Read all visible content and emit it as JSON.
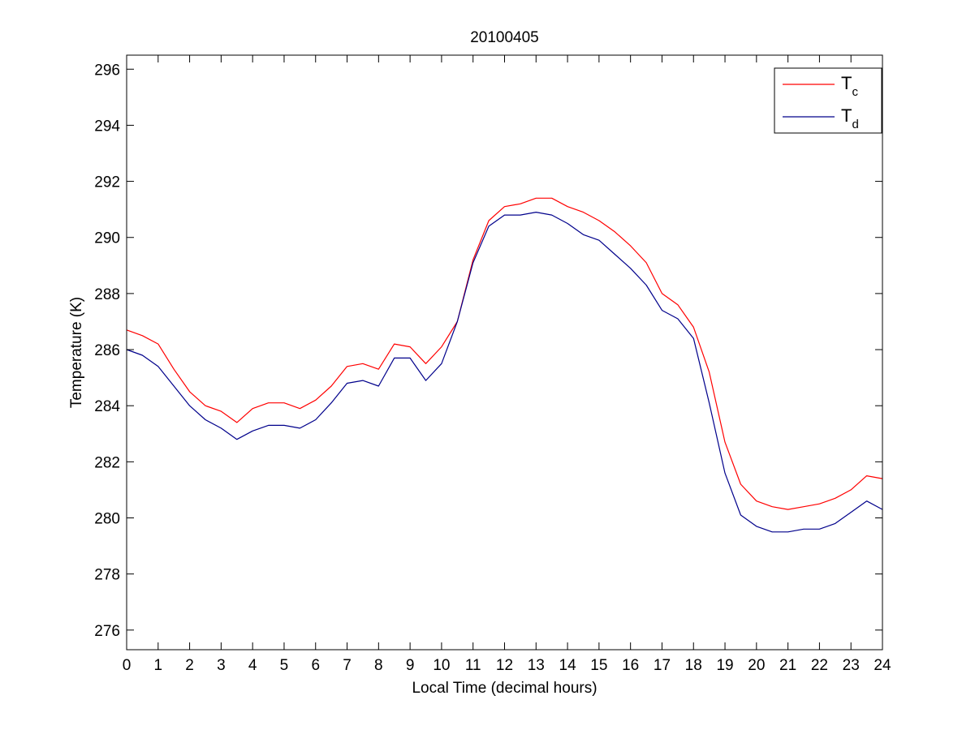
{
  "chart_data": {
    "type": "line",
    "title": "20100405",
    "xlabel": "Local Time (decimal hours)",
    "ylabel": "Temperature (K)",
    "xlim": [
      0,
      24
    ],
    "ylim": [
      275.3,
      296.5
    ],
    "xticks": [
      "0",
      "1",
      "2",
      "3",
      "4",
      "5",
      "6",
      "7",
      "8",
      "9",
      "10",
      "11",
      "12",
      "13",
      "14",
      "15",
      "16",
      "17",
      "18",
      "19",
      "20",
      "21",
      "22",
      "23",
      "24"
    ],
    "yticks": [
      "276",
      "278",
      "280",
      "282",
      "284",
      "286",
      "288",
      "290",
      "292",
      "294",
      "296"
    ],
    "grid": false,
    "legend_position": "top-right",
    "series": [
      {
        "name": "T",
        "subscript": "c",
        "color": "#ff0000",
        "x": [
          0,
          0.5,
          1,
          1.5,
          2,
          2.5,
          3,
          3.5,
          4,
          4.5,
          5,
          5.5,
          6,
          6.5,
          7,
          7.5,
          8,
          8.5,
          9,
          9.5,
          10,
          10.5,
          11,
          11.5,
          12,
          12.5,
          13,
          13.5,
          14,
          14.5,
          15,
          15.5,
          16,
          16.5,
          17,
          17.5,
          18,
          18.5,
          19,
          19.5,
          20,
          20.5,
          21,
          21.5,
          22,
          22.5,
          23,
          23.5,
          24
        ],
        "values": [
          286.7,
          286.5,
          286.2,
          285.3,
          284.5,
          284.0,
          283.8,
          283.4,
          283.9,
          284.1,
          284.1,
          283.9,
          284.2,
          284.7,
          285.4,
          285.5,
          285.3,
          286.2,
          286.1,
          285.5,
          286.1,
          287.0,
          289.2,
          290.6,
          291.1,
          291.2,
          291.4,
          291.4,
          291.1,
          290.9,
          290.6,
          290.2,
          289.7,
          289.1,
          288.0,
          287.6,
          286.8,
          285.2,
          282.7,
          281.2,
          280.6,
          280.4,
          280.3,
          280.4,
          280.5,
          280.7,
          281.0,
          281.5,
          281.4
        ]
      },
      {
        "name": "T",
        "subscript": "d",
        "color": "#00008b",
        "x": [
          0,
          0.5,
          1,
          1.5,
          2,
          2.5,
          3,
          3.5,
          4,
          4.5,
          5,
          5.5,
          6,
          6.5,
          7,
          7.5,
          8,
          8.5,
          9,
          9.5,
          10,
          10.5,
          11,
          11.5,
          12,
          12.5,
          13,
          13.5,
          14,
          14.5,
          15,
          15.5,
          16,
          16.5,
          17,
          17.5,
          18,
          18.5,
          19,
          19.5,
          20,
          20.5,
          21,
          21.5,
          22,
          22.5,
          23,
          23.5,
          24
        ],
        "values": [
          286.0,
          285.8,
          285.4,
          284.7,
          284.0,
          283.5,
          283.2,
          282.8,
          283.1,
          283.3,
          283.3,
          283.2,
          283.5,
          284.1,
          284.8,
          284.9,
          284.7,
          285.7,
          285.7,
          284.9,
          285.5,
          287.0,
          289.1,
          290.4,
          290.8,
          290.8,
          290.9,
          290.8,
          290.5,
          290.1,
          289.9,
          289.4,
          288.9,
          288.3,
          287.4,
          287.1,
          286.4,
          284.1,
          281.6,
          280.1,
          279.7,
          279.5,
          279.5,
          279.6,
          279.6,
          279.8,
          280.2,
          280.6,
          280.3
        ]
      }
    ]
  }
}
